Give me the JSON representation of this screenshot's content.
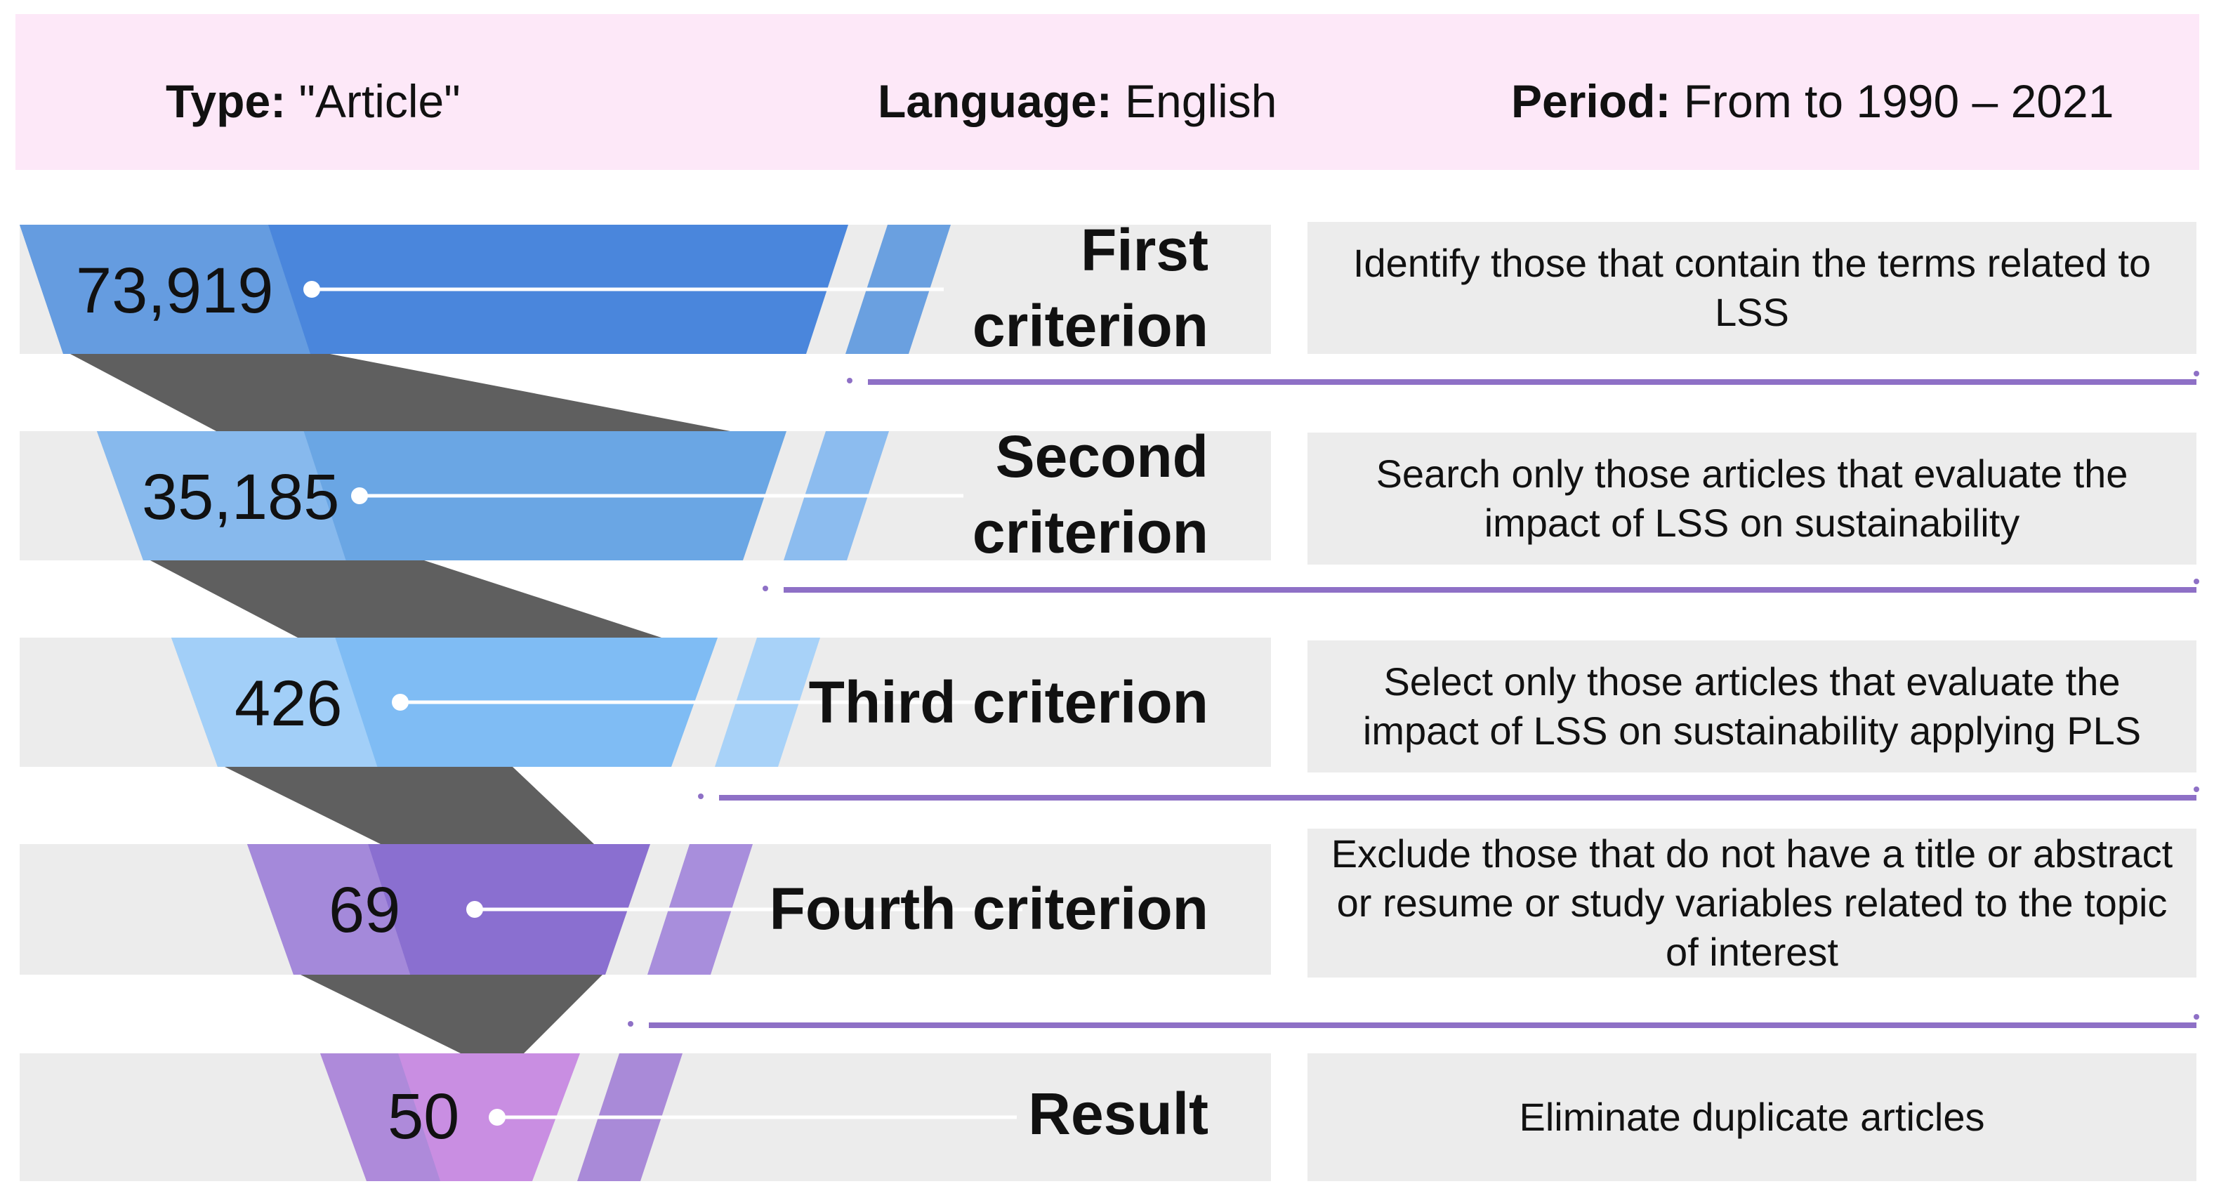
{
  "header": {
    "type_label": "Type:",
    "type_value": "\"Article\"",
    "language_label": "Language:",
    "language_value": "English",
    "period_label": "Period:",
    "period_value": "From to 1990 – 2021"
  },
  "stages": [
    {
      "count": "73,919",
      "criterion": "First criterion",
      "criterion_lines": [
        "First",
        "criterion"
      ],
      "description": "Identify those that contain the terms related to LSS",
      "color": "#4a86dc",
      "color_light": "#6aa0e0"
    },
    {
      "count": "35,185",
      "criterion": "Second criterion",
      "criterion_lines": [
        "Second",
        "criterion"
      ],
      "description": "Search only those articles that evaluate the impact of LSS on sustainability",
      "color": "#6aa6e4",
      "color_light": "#8cbcef"
    },
    {
      "count": "426",
      "criterion": "Third criterion",
      "criterion_lines": [
        "Third criterion"
      ],
      "description": "Select only those articles that evaluate the impact of LSS on sustainability applying PLS",
      "color": "#7fbcf4",
      "color_light": "#a8d2f8"
    },
    {
      "count": "69",
      "criterion": "Fourth criterion",
      "criterion_lines": [
        "Fourth criterion"
      ],
      "description": "Exclude those that do not have a title or abstract or resume or study variables related to the topic of interest",
      "color": "#8a6fd0",
      "color_light": "#a88edc"
    },
    {
      "count": "50",
      "criterion": "Result",
      "criterion_lines": [
        "Result"
      ],
      "description": "Eliminate duplicate articles",
      "color": "#c98ee2",
      "color_light": "#a98ad8"
    }
  ],
  "colors": {
    "header_bg": "#fde8f8",
    "row_bg": "#ececec",
    "connector": "#5f5f5f",
    "divider": "#8e70c6"
  }
}
